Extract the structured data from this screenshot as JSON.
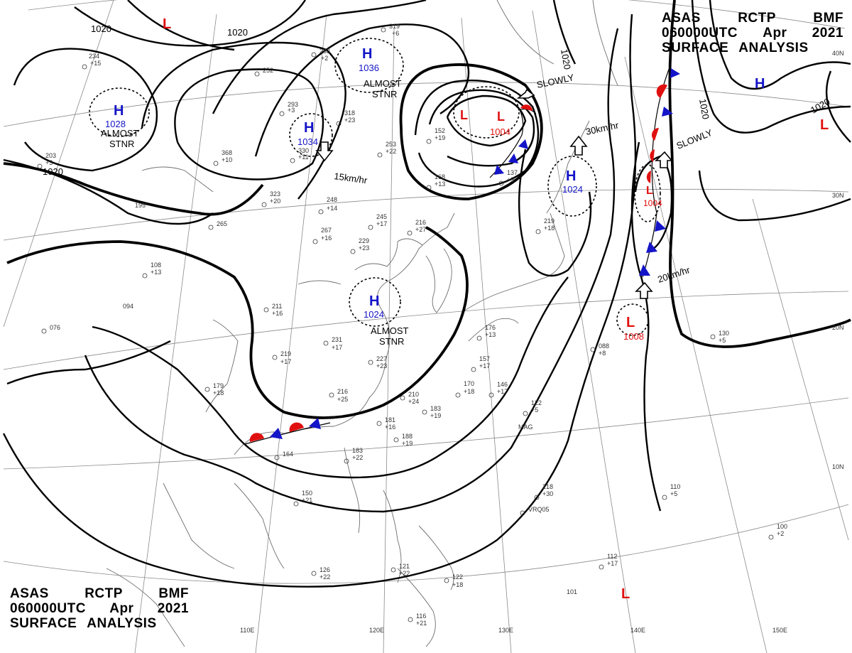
{
  "header": {
    "lines": [
      [
        "ASAS",
        "RCTP",
        "BMF"
      ],
      [
        "060000UTC",
        "Apr",
        "2021"
      ],
      [
        "SURFACE",
        "ANALYSIS"
      ]
    ]
  },
  "colors": {
    "high": "#1414c8",
    "low": "#e01010",
    "warm_front": "#e01010",
    "cold_front": "#1414c8"
  },
  "lat_labels": [
    "40N",
    "30N",
    "20N",
    "10N"
  ],
  "lon_labels": [
    "110E",
    "120E",
    "130E",
    "140E",
    "150E"
  ],
  "isobar_labels": [
    "1020",
    "1020",
    "1020",
    "1020",
    "1020",
    "1020"
  ],
  "highs": [
    {
      "symbol": "H",
      "pressure": "1028"
    },
    {
      "symbol": "H",
      "pressure": "1036"
    },
    {
      "symbol": "H",
      "pressure": "1034"
    },
    {
      "symbol": "H",
      "pressure": "1024"
    },
    {
      "symbol": "H",
      "pressure": "1024"
    },
    {
      "symbol": "H",
      "pressure": ""
    }
  ],
  "lows": [
    {
      "symbol": "L",
      "pressure": ""
    },
    {
      "symbol": "L",
      "pressure": ""
    },
    {
      "symbol": "L",
      "pressure": "1004"
    },
    {
      "symbol": "L",
      "pressure": "1004"
    },
    {
      "symbol": "L",
      "pressure": "1008"
    },
    {
      "symbol": "L",
      "pressure": ""
    },
    {
      "symbol": "L",
      "pressure": ""
    }
  ],
  "motion_labels": [
    "ALMOST\nSTNR",
    "ALMOST\nSTNR",
    "ALMOST\nSTNR",
    "SLOWLY",
    "15km/hr",
    "30km/hr",
    "SLOWLY",
    "20km/hr"
  ],
  "stations": [
    "319",
    "+6",
    "283",
    "+2",
    "252",
    "293",
    "+3",
    "318",
    "+23",
    "330",
    "+11",
    "368",
    "+10",
    "323",
    "+20",
    "248",
    "+14",
    "267",
    "+16",
    "245",
    "+17",
    "216",
    "+27",
    "229",
    "+23",
    "195",
    "265",
    "108",
    "+13",
    "094",
    "211",
    "+16",
    "231",
    "+17",
    "227",
    "+23",
    "219",
    "+17",
    "216",
    "+25",
    "179",
    "+18",
    "210",
    "+24",
    "183",
    "+19",
    "181",
    "+16",
    "188",
    "+19",
    "164",
    "150",
    "+21",
    "183",
    "+22",
    "152",
    "+19",
    "253",
    "+22",
    "168",
    "+13",
    "137",
    "+9",
    "219",
    "+18",
    "176",
    "+13",
    "157",
    "+17",
    "146",
    "+17",
    "170",
    "+18",
    "122",
    "+5",
    "218",
    "+30",
    "110",
    "+5",
    "100",
    "+2",
    "112",
    "+17",
    "101",
    "126",
    "+22",
    "121",
    "+22",
    "122",
    "+18",
    "116",
    "+21",
    "130",
    "+5",
    "088",
    "+8",
    "076",
    "234",
    "+15",
    "203",
    "+3",
    "MAG",
    "VRQ05"
  ]
}
